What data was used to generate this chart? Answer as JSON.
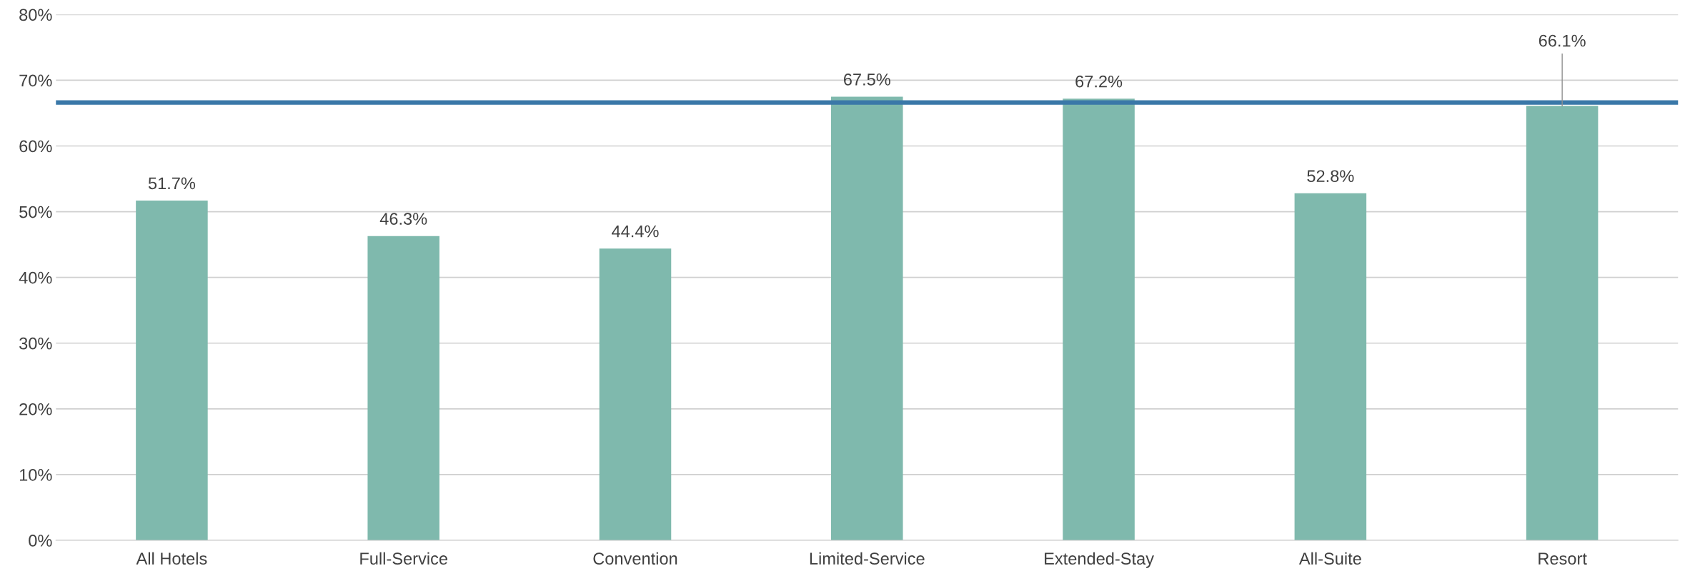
{
  "chart_data": {
    "type": "bar",
    "categories": [
      "All Hotels",
      "Full-Service",
      "Convention",
      "Limited-Service",
      "Extended-Stay",
      "All-Suite",
      "Resort"
    ],
    "values": [
      51.7,
      46.3,
      44.4,
      67.5,
      67.2,
      52.8,
      66.1
    ],
    "value_labels": [
      "51.7%",
      "46.3%",
      "44.4%",
      "67.5%",
      "67.2%",
      "52.8%",
      "66.1%"
    ],
    "color": "#7fb9ad",
    "ylim": [
      0,
      80
    ],
    "yticks": [
      {
        "value": 0,
        "label": "0%"
      },
      {
        "value": 10,
        "label": "10%"
      },
      {
        "value": 20,
        "label": "20%"
      },
      {
        "value": 30,
        "label": "30%"
      },
      {
        "value": 40,
        "label": "40%"
      },
      {
        "value": 50,
        "label": "50%"
      },
      {
        "value": 60,
        "label": "60%"
      },
      {
        "value": 70,
        "label": "70%"
      },
      {
        "value": 80,
        "label": "80%"
      }
    ],
    "grid": "y",
    "ref_lines": [
      {
        "axis": "y",
        "value": 66.6,
        "color": "#3a78a8",
        "line_style": "solid"
      }
    ]
  }
}
